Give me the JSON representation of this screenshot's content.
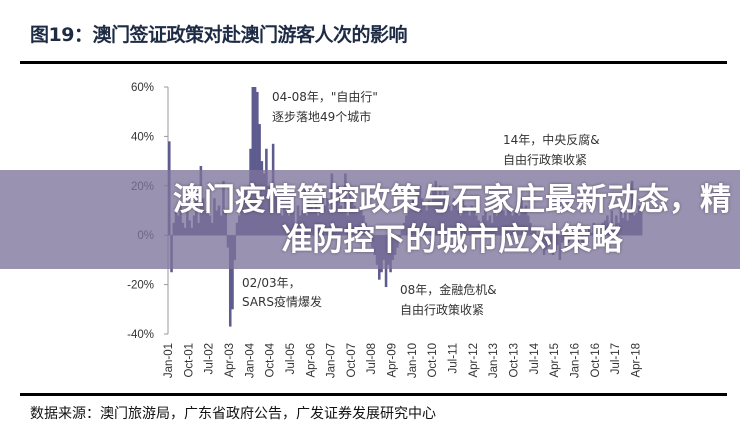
{
  "figure_title": "图19：澳门签证政策对赴澳门游客人次的影响",
  "source": "数据来源：澳门旅游局，广东省政府公告，广发证券发展研究中心",
  "banner": "澳门疫情管控政策与石家庄最新动态，精准防控下的城市应对策略",
  "colors": {
    "bar": "#5e5c8e",
    "title": "#1d2b45",
    "banner": "#7d739b"
  },
  "chart_data": {
    "type": "bar",
    "start_month": "Jan-01",
    "ylim": [
      -0.4,
      0.6
    ],
    "y_ticks": [
      "60%",
      "40%",
      "20%",
      "0%",
      "-20%",
      "-40%"
    ],
    "y_tick_values": [
      0.6,
      0.4,
      0.2,
      0,
      -0.2,
      -0.4
    ],
    "x_ticks": [
      "Jan-01",
      "Oct-01",
      "Jul-02",
      "Apr-03",
      "Jan-04",
      "Oct-04",
      "Jul-05",
      "Apr-06",
      "Jan-07",
      "Oct-07",
      "Jul-08",
      "Apr-09",
      "Jan-10",
      "Oct-10",
      "Jul-11",
      "Apr-12",
      "Jan-13",
      "Oct-13",
      "Jul-14",
      "Apr-15",
      "Jan-16",
      "Oct-16",
      "Jul-17",
      "Apr-18"
    ],
    "values": [
      0.38,
      -0.15,
      0.05,
      0.1,
      0.08,
      0.12,
      0.05,
      0.03,
      0.1,
      0.06,
      0.03,
      0.08,
      0.2,
      0.05,
      0.28,
      0.15,
      0.1,
      0.12,
      0.08,
      0.05,
      0.15,
      0.1,
      0.12,
      0.08,
      0.22,
      0.1,
      -0.05,
      -0.37,
      -0.3,
      -0.1,
      0.05,
      0.08,
      0.12,
      0.15,
      0.18,
      0.2,
      0.35,
      0.6,
      0.6,
      0.58,
      0.45,
      0.3,
      0.25,
      0.35,
      0.2,
      0.15,
      0.37,
      0.18,
      0.15,
      0.1,
      0.08,
      0.12,
      0.1,
      0.08,
      0.15,
      0.1,
      0.05,
      0.12,
      0.08,
      0.1,
      0.2,
      0.08,
      0.15,
      0.12,
      0.1,
      0.14,
      0.08,
      0.1,
      0.18,
      0.12,
      0.15,
      0.1,
      0.25,
      0.1,
      0.15,
      0.2,
      0.12,
      0.1,
      0.25,
      0.08,
      0.18,
      0.15,
      0.12,
      0.1,
      0.1,
      0.12,
      0.08,
      0.05,
      0.02,
      -0.03,
      -0.05,
      -0.08,
      -0.12,
      -0.18,
      -0.15,
      -0.1,
      -0.21,
      -0.12,
      -0.15,
      -0.1,
      -0.08,
      -0.05,
      -0.03,
      0.02,
      0.05,
      0.08,
      0.1,
      0.12,
      0.15,
      0.12,
      0.18,
      0.2,
      0.15,
      0.12,
      0.1,
      0.14,
      0.12,
      0.18,
      0.22,
      0.15,
      0.2,
      0.15,
      0.18,
      0.14,
      0.12,
      0.1,
      0.15,
      0.12,
      0.1,
      0.08,
      0.14,
      0.12,
      0.1,
      0.08,
      0.12,
      0.1,
      0.08,
      0.06,
      0.05,
      0.08,
      0.1,
      0.06,
      0.08,
      0.05,
      0.12,
      0.08,
      0.1,
      0.15,
      0.1,
      0.08,
      0.12,
      0.1,
      0.08,
      0.1,
      0.12,
      0.08,
      0.15,
      0.1,
      0.12,
      0.08,
      0.05,
      0.03,
      0.02,
      0.0,
      -0.02,
      -0.05,
      -0.08,
      -0.06,
      -0.05,
      -0.03,
      -0.08,
      -0.06,
      -0.04,
      -0.1,
      -0.03,
      -0.02,
      -0.05,
      -0.03,
      -0.02,
      0.0,
      -0.02,
      -0.05,
      0.0,
      -0.03,
      0.02,
      -0.01,
      0.03,
      0.01,
      0.05,
      0.02,
      0.04,
      0.03,
      0.05,
      0.06,
      0.08,
      0.04,
      0.1,
      0.03,
      0.08,
      0.05,
      0.12,
      0.07,
      0.09,
      0.06,
      0.1,
      0.22,
      0.08,
      0.09,
      0.12,
      0.1
    ],
    "annotations": [
      {
        "lines": [
          "04-08年，\"自由行\"",
          "逐步落地49个城市"
        ]
      },
      {
        "lines": [
          "14年，中央反腐&",
          "自由行政策收紧"
        ]
      },
      {
        "lines": [
          "02/03年，",
          "SARS疫情爆发"
        ]
      },
      {
        "lines": [
          "08年，金融危机&",
          "自由行政策收紧"
        ]
      }
    ]
  }
}
